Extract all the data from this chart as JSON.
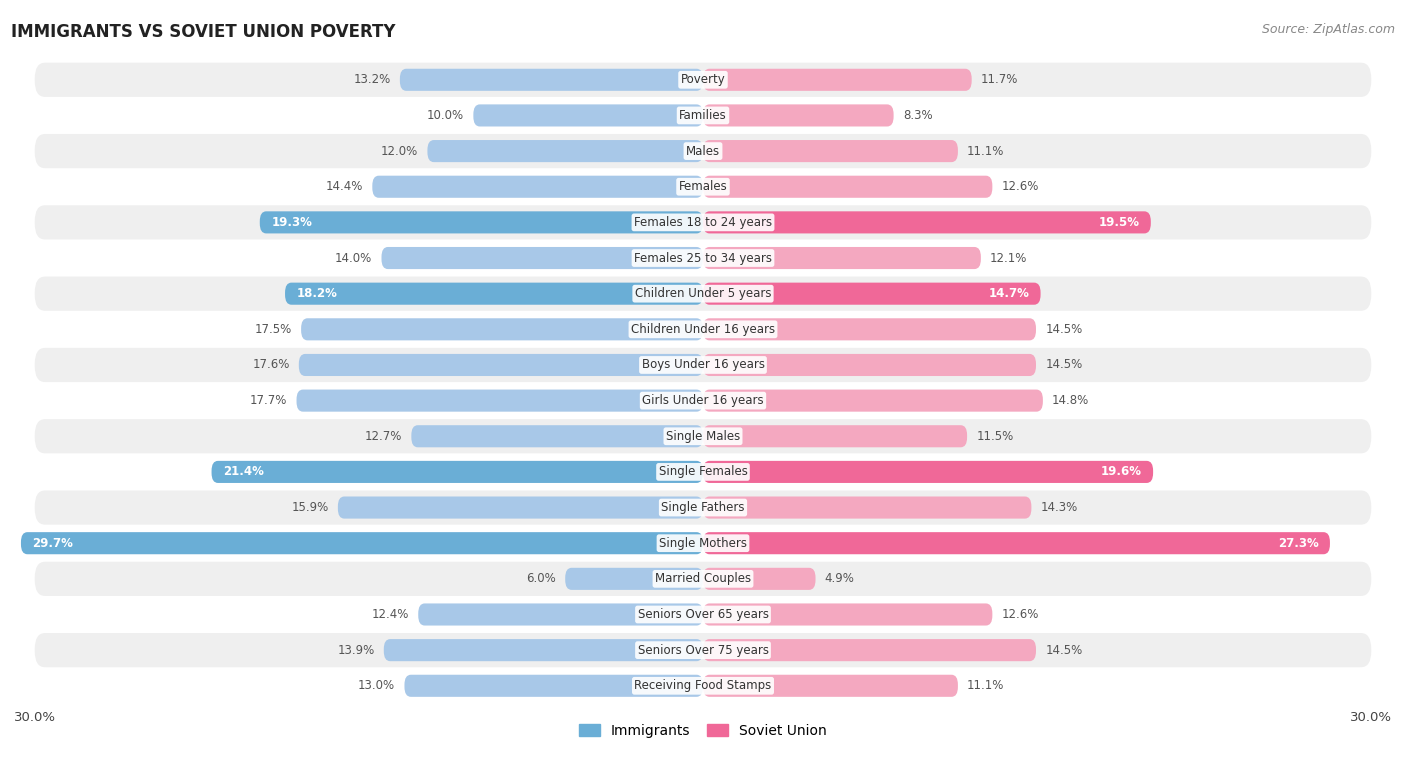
{
  "title": "IMMIGRANTS VS SOVIET UNION POVERTY",
  "source": "Source: ZipAtlas.com",
  "categories": [
    "Poverty",
    "Families",
    "Males",
    "Females",
    "Females 18 to 24 years",
    "Females 25 to 34 years",
    "Children Under 5 years",
    "Children Under 16 years",
    "Boys Under 16 years",
    "Girls Under 16 years",
    "Single Males",
    "Single Females",
    "Single Fathers",
    "Single Mothers",
    "Married Couples",
    "Seniors Over 65 years",
    "Seniors Over 75 years",
    "Receiving Food Stamps"
  ],
  "immigrants": [
    13.2,
    10.0,
    12.0,
    14.4,
    19.3,
    14.0,
    18.2,
    17.5,
    17.6,
    17.7,
    12.7,
    21.4,
    15.9,
    29.7,
    6.0,
    12.4,
    13.9,
    13.0
  ],
  "soviet_union": [
    11.7,
    8.3,
    11.1,
    12.6,
    19.5,
    12.1,
    14.7,
    14.5,
    14.5,
    14.8,
    11.5,
    19.6,
    14.3,
    27.3,
    4.9,
    12.6,
    14.5,
    11.1
  ],
  "immigrants_color": "#a8c8e8",
  "soviet_color": "#f4a8c0",
  "immigrants_highlight_color": "#6aaed6",
  "soviet_highlight_color": "#f06898",
  "highlight_rows": [
    4,
    6,
    11,
    13
  ],
  "bg_color": "#ffffff",
  "row_bg_light": "#efefef",
  "row_bg_white": "#ffffff",
  "bar_height": 0.62,
  "xlim": 30.0,
  "legend_immigrants": "Immigrants",
  "legend_soviet": "Soviet Union"
}
